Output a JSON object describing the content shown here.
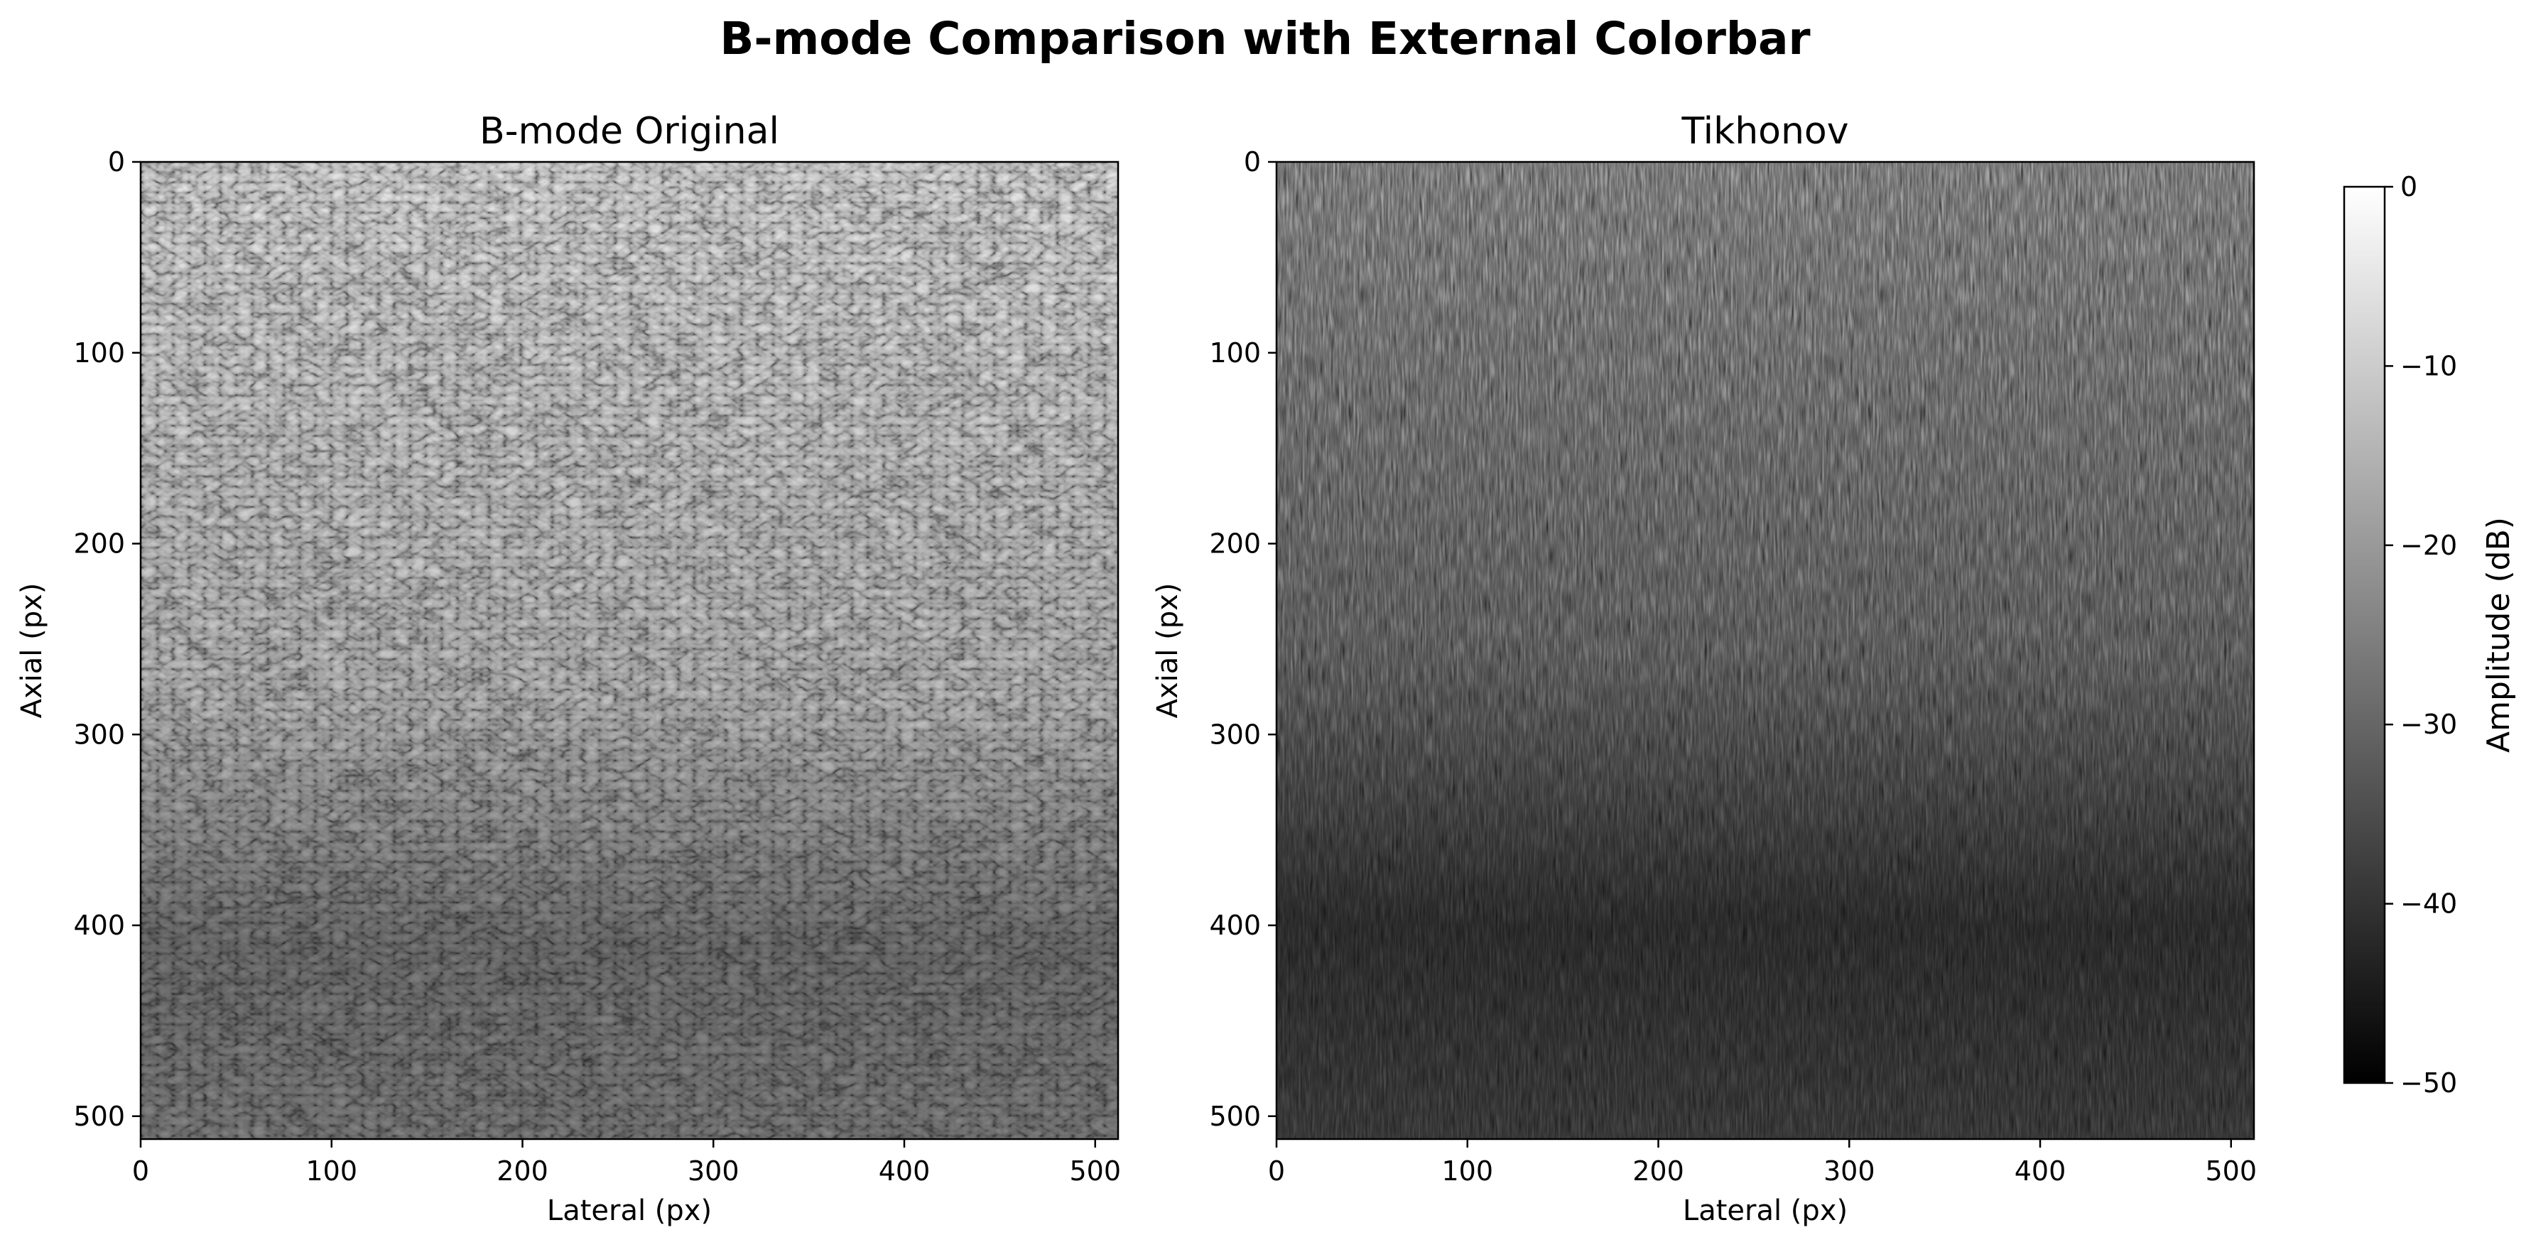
{
  "figure": {
    "title": "B-mode Comparison with External Colorbar"
  },
  "chart_data": [
    {
      "type": "heatmap",
      "title": "B-mode Original",
      "xlabel": "Lateral (px)",
      "ylabel": "Axial (px)",
      "xlim": [
        0,
        512
      ],
      "ylim": [
        512,
        0
      ],
      "x_ticks": [
        0,
        100,
        200,
        300,
        400,
        500
      ],
      "y_ticks": [
        0,
        100,
        200,
        300,
        400,
        500
      ],
      "colormap": "gray",
      "value_range_db": [
        -50,
        0
      ],
      "grid": false
    },
    {
      "type": "heatmap",
      "title": "Tikhonov",
      "xlabel": "Lateral (px)",
      "ylabel": "Axial (px)",
      "xlim": [
        0,
        512
      ],
      "ylim": [
        512,
        0
      ],
      "x_ticks": [
        0,
        100,
        200,
        300,
        400,
        500
      ],
      "y_ticks": [
        0,
        100,
        200,
        300,
        400,
        500
      ],
      "colormap": "gray",
      "value_range_db": [
        -50,
        0
      ],
      "grid": false
    }
  ],
  "colorbar": {
    "label": "Amplitude (dB)",
    "ticks": [
      0,
      -10,
      -20,
      -30,
      -40,
      -50
    ],
    "tick_labels": [
      "0",
      "−10",
      "−20",
      "−30",
      "−40",
      "−50"
    ],
    "range": [
      -50,
      0
    ],
    "colors": {
      "top": "#ffffff",
      "bottom": "#000000"
    }
  }
}
